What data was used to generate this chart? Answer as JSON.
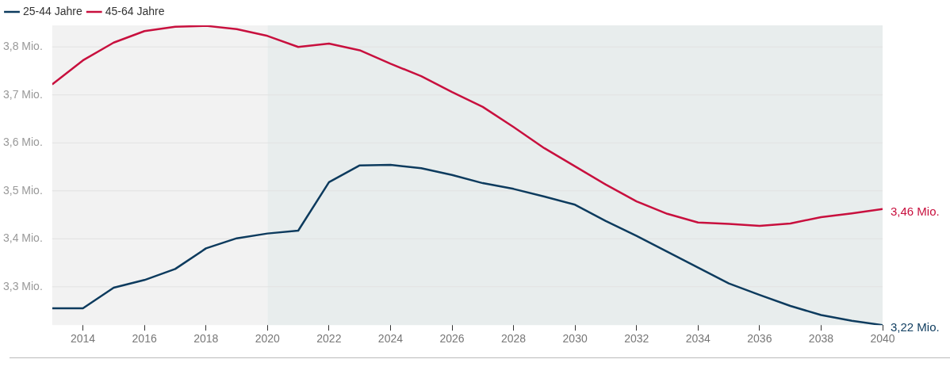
{
  "chart_data": {
    "type": "line",
    "x": [
      2013,
      2014,
      2015,
      2016,
      2017,
      2018,
      2019,
      2020,
      2021,
      2022,
      2023,
      2024,
      2025,
      2026,
      2027,
      2028,
      2029,
      2030,
      2031,
      2032,
      2033,
      2034,
      2035,
      2036,
      2037,
      2038,
      2039,
      2040
    ],
    "series": [
      {
        "name": "25-44 Jahre",
        "color": "#0d3b5e",
        "values": [
          3.255,
          3.255,
          3.298,
          3.314,
          3.337,
          3.38,
          3.401,
          3.411,
          3.417,
          3.518,
          3.553,
          3.554,
          3.547,
          3.533,
          3.516,
          3.504,
          3.488,
          3.471,
          3.437,
          3.406,
          3.373,
          3.34,
          3.307,
          3.283,
          3.26,
          3.241,
          3.229,
          3.22
        ]
      },
      {
        "name": "45-64 Jahre",
        "color": "#c8103e",
        "values": [
          3.722,
          3.772,
          3.809,
          3.833,
          3.842,
          3.844,
          3.837,
          3.823,
          3.8,
          3.807,
          3.793,
          3.765,
          3.739,
          3.706,
          3.675,
          3.633,
          3.589,
          3.551,
          3.513,
          3.478,
          3.452,
          3.434,
          3.431,
          3.427,
          3.432,
          3.445,
          3.453,
          3.462
        ]
      }
    ],
    "xlim": [
      2013,
      2040
    ],
    "xticks": [
      2014,
      2016,
      2018,
      2020,
      2022,
      2024,
      2026,
      2028,
      2030,
      2032,
      2034,
      2036,
      2038,
      2040
    ],
    "ylim": [
      3.22,
      3.845
    ],
    "yticks": [
      {
        "value": 3.3,
        "label": "3,3 Mio."
      },
      {
        "value": 3.4,
        "label": "3,4 Mio."
      },
      {
        "value": 3.5,
        "label": "3,5 Mio."
      },
      {
        "value": 3.6,
        "label": "3,6 Mio."
      },
      {
        "value": 3.7,
        "label": "3,7 Mio."
      },
      {
        "value": 3.8,
        "label": "3,8 Mio."
      }
    ],
    "grid": "y",
    "legend": "top left",
    "marker": "none",
    "line_style": "solid",
    "bands": [
      {
        "axis": "x",
        "from": 2013,
        "to": 2020,
        "color": "#f2f2f2"
      },
      {
        "axis": "x",
        "from": 2020,
        "to": 2040,
        "color": "#e8eded"
      }
    ],
    "annotations": [
      {
        "text": "3,46 Mio.",
        "x": 2040,
        "y": 3.462
      },
      {
        "text": "3,22 Mio.",
        "x": 2040,
        "y": 3.22
      }
    ]
  }
}
